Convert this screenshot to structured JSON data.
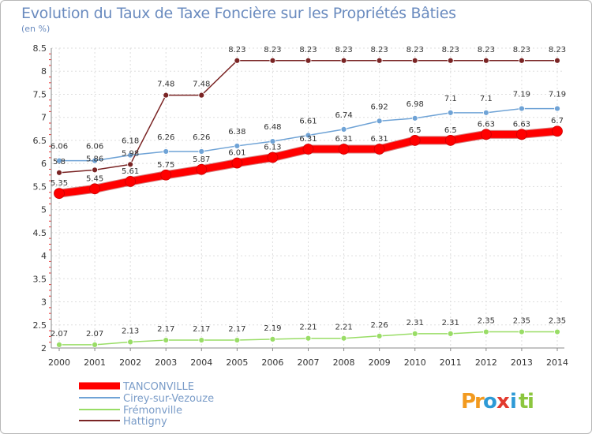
{
  "chart_data": {
    "type": "line",
    "title": "Evolution du Taux de Taxe Foncière sur les Propriétés Bâties",
    "ylabel": "(en %)",
    "xlabel": "",
    "ylim": [
      2,
      8.5
    ],
    "yticks": [
      "2",
      "2.5",
      "3",
      "3.5",
      "4",
      "4.5",
      "5",
      "5.5",
      "6",
      "6.5",
      "7",
      "7.5",
      "8",
      "8.5"
    ],
    "categories": [
      "2000",
      "2001",
      "2002",
      "2003",
      "2004",
      "2005",
      "2006",
      "2007",
      "2008",
      "2009",
      "2010",
      "2011",
      "2012",
      "2013",
      "2014"
    ],
    "grid": true,
    "series": [
      {
        "name": "TANCONVILLE",
        "color": "#ff0000",
        "values": [
          5.35,
          5.45,
          5.61,
          5.75,
          5.87,
          6.01,
          6.13,
          6.31,
          6.31,
          6.31,
          6.5,
          6.5,
          6.63,
          6.63,
          6.7
        ],
        "labels": [
          "5.35",
          "5.45",
          "5.61",
          "5.75",
          "5.87",
          "6.01",
          "6.13",
          "6.31",
          "6.31",
          "6.31",
          "6.5",
          "6.5",
          "6.63",
          "6.63",
          "6.7"
        ]
      },
      {
        "name": "Cirey-sur-Vezouze",
        "color": "#6fa3d6",
        "values": [
          6.06,
          6.06,
          6.18,
          6.26,
          6.26,
          6.38,
          6.48,
          6.61,
          6.74,
          6.92,
          6.98,
          7.1,
          7.1,
          7.19,
          7.19
        ],
        "labels": [
          "6.06",
          "6.06",
          "6.18",
          "6.26",
          "6.26",
          "6.38",
          "6.48",
          "6.61",
          "6.74",
          "6.92",
          "6.98",
          "7.1",
          "7.1",
          "7.19",
          "7.19"
        ]
      },
      {
        "name": "Frémonville",
        "color": "#99dd66",
        "values": [
          2.07,
          2.07,
          2.13,
          2.17,
          2.17,
          2.17,
          2.19,
          2.21,
          2.21,
          2.26,
          2.31,
          2.31,
          2.35,
          2.35,
          2.35
        ],
        "labels": [
          "2.07",
          "2.07",
          "2.13",
          "2.17",
          "2.17",
          "2.17",
          "2.19",
          "2.21",
          "2.21",
          "2.26",
          "2.31",
          "2.31",
          "2.35",
          "2.35",
          "2.35"
        ]
      },
      {
        "name": "Hattigny",
        "color": "#7a2424",
        "values": [
          5.8,
          5.86,
          5.98,
          7.48,
          7.48,
          8.23,
          8.23,
          8.23,
          8.23,
          8.23,
          8.23,
          8.23,
          8.23,
          8.23,
          8.23
        ],
        "labels": [
          "5.8",
          "5.86",
          "5.98",
          "7.48",
          "7.48",
          "8.23",
          "8.23",
          "8.23",
          "8.23",
          "8.23",
          "8.23",
          "8.23",
          "8.23",
          "8.23",
          "8.23"
        ]
      }
    ],
    "legend": {
      "position": "bottom-left",
      "entries": [
        "TANCONVILLE",
        "Cirey-sur-Vezouze",
        "Frémonville",
        "Hattigny"
      ]
    }
  },
  "logo": {
    "text": "Proxiti",
    "letters": [
      {
        "ch": "P",
        "color": "#f29a1f"
      },
      {
        "ch": "r",
        "color": "#f29a1f"
      },
      {
        "ch": "o",
        "color": "#2e9ad6"
      },
      {
        "ch": "x",
        "color": "#e23a2e"
      },
      {
        "ch": "i",
        "color": "#2e9ad6"
      },
      {
        "ch": "t",
        "color": "#8cc63e"
      },
      {
        "ch": "i",
        "color": "#8cc63e"
      }
    ]
  }
}
